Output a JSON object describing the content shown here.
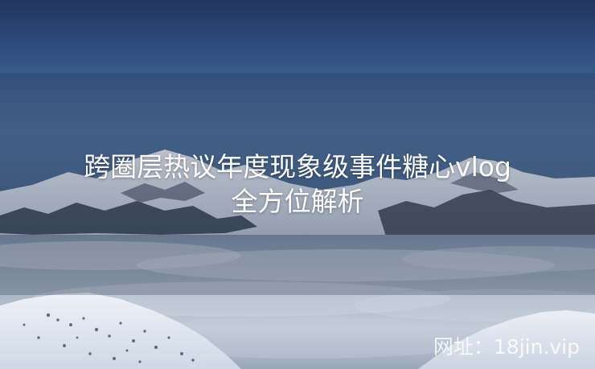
{
  "headline": {
    "line1": "跨圈层热议年度现象级事件糖心vlog",
    "line2": "全方位解析"
  },
  "watermark": {
    "text": "网址：18jin.vip"
  },
  "colors": {
    "sky_top": "#22365f",
    "sky_mid": "#4b6e9b",
    "snow": "#e8edf4",
    "cloud_sea": "#b8c3d2",
    "rock": "#2a3445"
  }
}
